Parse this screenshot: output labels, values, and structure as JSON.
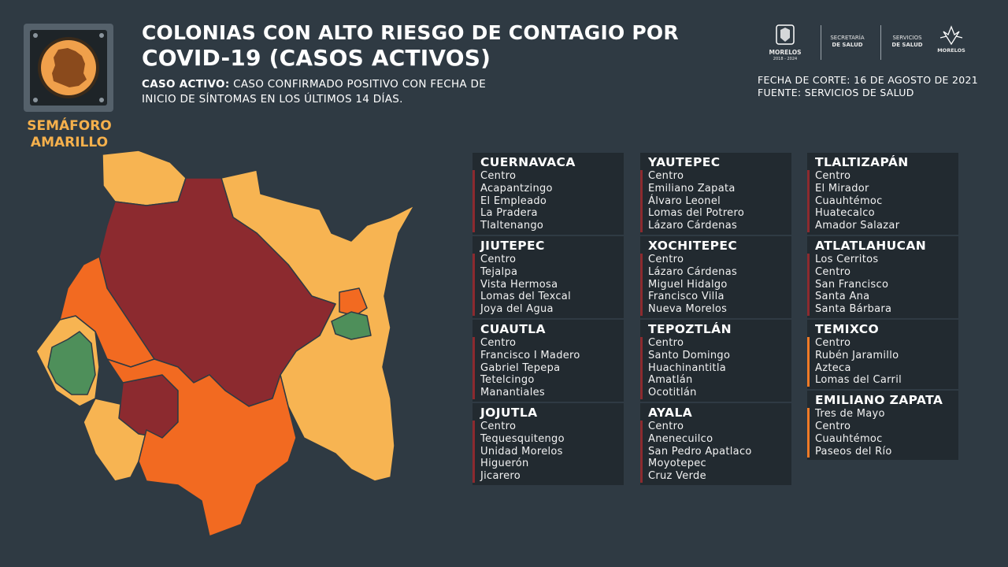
{
  "semaforo": {
    "label_line1": "SEMÁFORO",
    "label_line2": "AMARILLO"
  },
  "title": {
    "line1": "COLONIAS CON ALTO RIESGO DE CONTAGIO POR",
    "line2": "COVID-19 (CASOS ACTIVOS)"
  },
  "definition": {
    "term": "CASO ACTIVO:",
    "text1": " CASO CONFIRMADO POSITIVO CON FECHA DE",
    "text2": "INICIO DE SÍNTOMAS EN LOS ÚLTIMOS 14 DÍAS."
  },
  "logos": {
    "morelos": "MORELOS",
    "morelos_years": "2018 - 2024",
    "secretaria_1": "SECRETARÍA",
    "secretaria_2": "DE SALUD",
    "servicios_1": "SERVICIOS",
    "servicios_2": "DE SALUD",
    "morelos2": "MORELOS"
  },
  "meta": {
    "fecha": "FECHA DE CORTE: 16 DE AGOSTO DE 2021",
    "fuente": "FUENTE: SERVICIOS DE SALUD"
  },
  "colors": {
    "high": "#8c2a2f",
    "orange": "#f26a21",
    "yellow": "#f7b452",
    "green": "#4e8f5a",
    "background": "#2f3a43"
  },
  "municipios": {
    "col1": [
      {
        "name": "CUERNAVACA",
        "color": "high",
        "colonias": [
          "Centro",
          "Acapantzingo",
          "El Empleado",
          "La Pradera",
          "Tlaltenango"
        ]
      },
      {
        "name": "JIUTEPEC",
        "color": "high",
        "colonias": [
          "Centro",
          "Tejalpa",
          "Vista Hermosa",
          "Lomas del Texcal",
          "Joya del Agua"
        ]
      },
      {
        "name": "CUAUTLA",
        "color": "high",
        "colonias": [
          "Centro",
          "Francisco I Madero",
          "Gabriel Tepepa",
          "Tetelcingo",
          "Manantiales"
        ]
      },
      {
        "name": "JOJUTLA",
        "color": "high",
        "colonias": [
          "Centro",
          "Tequesquitengo",
          "Unidad Morelos",
          "Higuerón",
          "Jicarero"
        ]
      }
    ],
    "col2": [
      {
        "name": "YAUTEPEC",
        "color": "high",
        "colonias": [
          "Centro",
          "Emiliano Zapata",
          "Álvaro Leonel",
          "Lomas del Potrero",
          "Lázaro Cárdenas"
        ]
      },
      {
        "name": "XOCHITEPEC",
        "color": "high",
        "colonias": [
          "Centro",
          "Lázaro Cárdenas",
          "Miguel Hidalgo",
          "Francisco Villa",
          "Nueva Morelos"
        ]
      },
      {
        "name": "TEPOZTLÁN",
        "color": "high",
        "colonias": [
          "Centro",
          "Santo Domingo",
          "Huachinantitla",
          "Amatlán",
          "Ocotitlán"
        ]
      },
      {
        "name": "AYALA",
        "color": "high",
        "colonias": [
          "Centro",
          "Anenecuilco",
          "San Pedro Apatlaco",
          "Moyotepec",
          "Cruz Verde"
        ]
      }
    ],
    "col3": [
      {
        "name": "TLALTIZAPÁN",
        "color": "high",
        "colonias": [
          "Centro",
          "El Mirador",
          "Cuauhtémoc",
          "Huatecalco",
          "Amador Salazar"
        ]
      },
      {
        "name": "ATLATLAHUCAN",
        "color": "high",
        "colonias": [
          "Los Cerritos",
          "Centro",
          "San Francisco",
          "Santa Ana",
          "Santa Bárbara"
        ]
      },
      {
        "name": "TEMIXCO",
        "color": "orange",
        "colonias": [
          "Centro",
          "Rubén Jaramillo",
          "Azteca",
          "Lomas del Carril"
        ]
      },
      {
        "name": "EMILIANO ZAPATA",
        "color": "orange",
        "colonias": [
          "Tres de Mayo",
          "Centro",
          "Cuauhtémoc",
          "Paseos del Río"
        ]
      }
    ]
  }
}
